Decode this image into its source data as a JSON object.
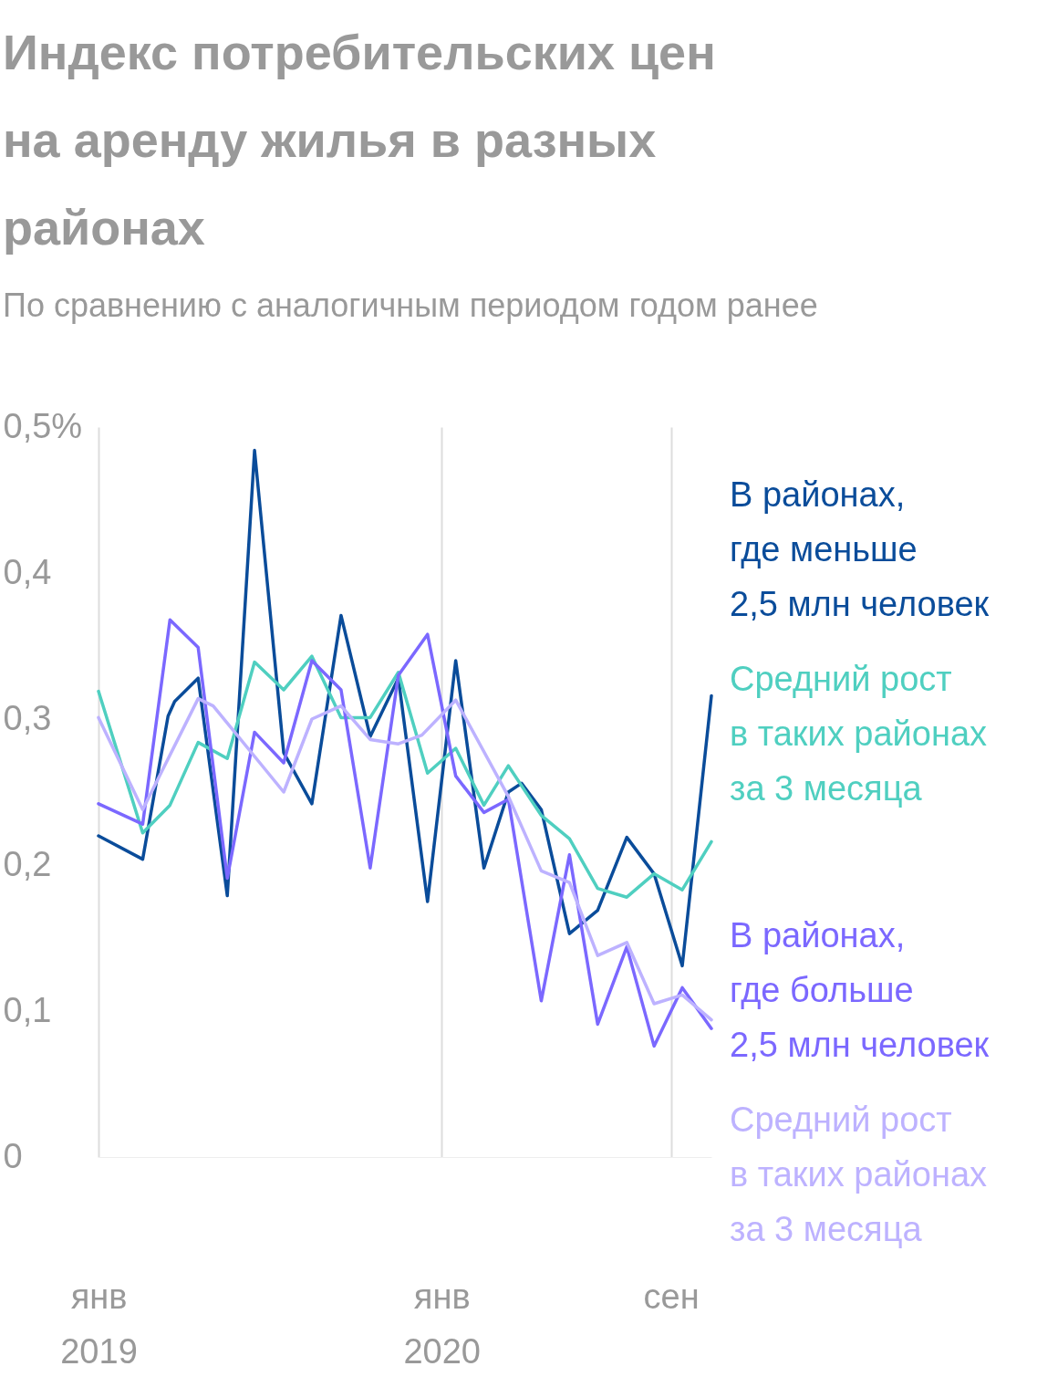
{
  "chart_data": {
    "type": "line",
    "title": "Индекс потребительских цен\nна аренду жилья в разных\nрайонах",
    "subtitle": "По сравнению с аналогичным периодом годом ранее",
    "xlim": [
      "2019-01-01",
      "2020-10-14"
    ],
    "xticks": [
      {
        "value": "2019-01-01",
        "label": "янв\n2019"
      },
      {
        "value": "2020-01-01",
        "label": "янв\n2020"
      },
      {
        "value": "2020-09-01",
        "label": "сен"
      }
    ],
    "ylim": [
      0,
      0.5
    ],
    "yticks": [
      {
        "value": 0,
        "label": "0"
      },
      {
        "value": 0.1,
        "label": "0,1"
      },
      {
        "value": 0.2,
        "label": "0,2"
      },
      {
        "value": 0.3,
        "label": "0,3"
      },
      {
        "value": 0.4,
        "label": "0,4"
      },
      {
        "value": 0.5,
        "label": "0,5%"
      }
    ],
    "grid": "x",
    "series": [
      {
        "name": "В районах,\nгде меньше\n2,5 млн человек",
        "color": "#0a4c9a",
        "x": [
          "2019-01-01",
          "2019-02-17",
          "2019-03-16",
          "2019-03-23",
          "2019-04-17",
          "2019-05-18",
          "2019-06-16",
          "2019-07-17",
          "2019-08-16",
          "2019-09-16",
          "2019-10-17",
          "2019-11-16",
          "2019-12-17",
          "2020-01-16",
          "2020-02-15",
          "2020-03-12",
          "2020-03-26",
          "2020-04-16",
          "2020-05-16",
          "2020-06-15",
          "2020-07-16",
          "2020-08-14",
          "2020-09-13",
          "2020-10-14"
        ],
        "values": [
          0.22,
          0.204,
          0.302,
          0.312,
          0.328,
          0.179,
          0.484,
          0.277,
          0.242,
          0.371,
          0.288,
          0.328,
          0.175,
          0.34,
          0.198,
          0.25,
          0.256,
          0.238,
          0.153,
          0.169,
          0.219,
          0.194,
          0.131,
          0.316
        ]
      },
      {
        "name": "Средний рост\nв таких районах\nза 3 месяца",
        "color": "#4fcfc0",
        "x": [
          "2019-01-01",
          "2019-02-17",
          "2019-03-18",
          "2019-04-17",
          "2019-05-18",
          "2019-06-16",
          "2019-07-17",
          "2019-08-16",
          "2019-09-16",
          "2019-10-17",
          "2019-11-16",
          "2019-12-17",
          "2020-01-16",
          "2020-02-15",
          "2020-03-12",
          "2020-04-16",
          "2020-05-16",
          "2020-06-15",
          "2020-07-16",
          "2020-08-14",
          "2020-09-13",
          "2020-10-14"
        ],
        "values": [
          0.319,
          0.222,
          0.241,
          0.284,
          0.273,
          0.339,
          0.32,
          0.343,
          0.301,
          0.301,
          0.332,
          0.263,
          0.28,
          0.241,
          0.268,
          0.234,
          0.218,
          0.184,
          0.178,
          0.194,
          0.183,
          0.216
        ]
      },
      {
        "name": "В районах,\nгде больше\n2,5 млн человек",
        "color": "#7b68ff",
        "x": [
          "2019-01-01",
          "2019-02-17",
          "2019-03-18",
          "2019-04-17",
          "2019-05-18",
          "2019-06-16",
          "2019-07-17",
          "2019-08-16",
          "2019-09-16",
          "2019-10-17",
          "2019-11-16",
          "2019-12-17",
          "2020-01-16",
          "2020-02-15",
          "2020-03-12",
          "2020-04-16",
          "2020-05-16",
          "2020-06-15",
          "2020-07-16",
          "2020-08-14",
          "2020-09-13",
          "2020-10-14"
        ],
        "values": [
          0.242,
          0.228,
          0.368,
          0.349,
          0.191,
          0.291,
          0.27,
          0.34,
          0.32,
          0.198,
          0.33,
          0.358,
          0.261,
          0.236,
          0.245,
          0.107,
          0.207,
          0.091,
          0.144,
          0.076,
          0.116,
          0.088
        ]
      },
      {
        "name": "Средний рост\nв таких районах\nза 3 месяца",
        "color": "#bdb2ff",
        "x": [
          "2019-01-01",
          "2019-02-17",
          "2019-04-17",
          "2019-05-03",
          "2019-07-17",
          "2019-08-16",
          "2019-09-16",
          "2019-10-17",
          "2019-11-16",
          "2019-12-11",
          "2020-01-16",
          "2020-03-12",
          "2020-04-16",
          "2020-05-16",
          "2020-06-15",
          "2020-07-16",
          "2020-08-14",
          "2020-09-13",
          "2020-10-14"
        ],
        "values": [
          0.301,
          0.238,
          0.314,
          0.309,
          0.25,
          0.3,
          0.309,
          0.286,
          0.283,
          0.289,
          0.313,
          0.247,
          0.196,
          0.188,
          0.138,
          0.147,
          0.105,
          0.111,
          0.094
        ]
      }
    ]
  }
}
